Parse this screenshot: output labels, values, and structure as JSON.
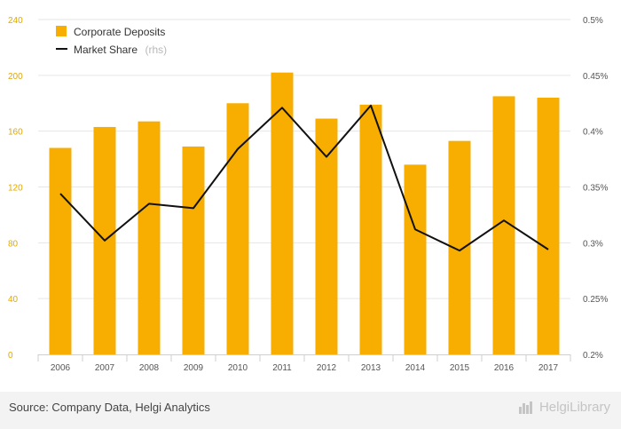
{
  "chart_data": {
    "type": "bar",
    "categories": [
      "2006",
      "2007",
      "2008",
      "2009",
      "2010",
      "2011",
      "2012",
      "2013",
      "2014",
      "2015",
      "2016",
      "2017"
    ],
    "series": [
      {
        "name": "Corporate Deposits",
        "type": "bar",
        "axis": "left",
        "values": [
          148,
          163,
          167,
          149,
          180,
          202,
          169,
          179,
          136,
          153,
          185,
          184
        ]
      },
      {
        "name": "Market Share",
        "name_suffix": "(rhs)",
        "type": "line",
        "axis": "right",
        "values": [
          0.344,
          0.302,
          0.335,
          0.331,
          0.384,
          0.421,
          0.377,
          0.423,
          0.312,
          0.293,
          0.32,
          0.294
        ]
      }
    ],
    "yticks_left": [
      "0",
      "40",
      "80",
      "120",
      "160",
      "200",
      "240"
    ],
    "ylim_left": [
      0,
      240
    ],
    "yticks_right": [
      "0.2%",
      "0.25%",
      "0.3%",
      "0.35%",
      "0.4%",
      "0.45%",
      "0.5%"
    ],
    "ylim_right": [
      0.2,
      0.5
    ],
    "grid": true,
    "legend_position": "top-left",
    "colors": {
      "bar": "#f7ae00",
      "line": "#111111",
      "left_ticks": "#e0a800"
    }
  },
  "footer": {
    "source": "Source: Company Data, Helgi Analytics",
    "brand": "HelgiLibrary"
  }
}
